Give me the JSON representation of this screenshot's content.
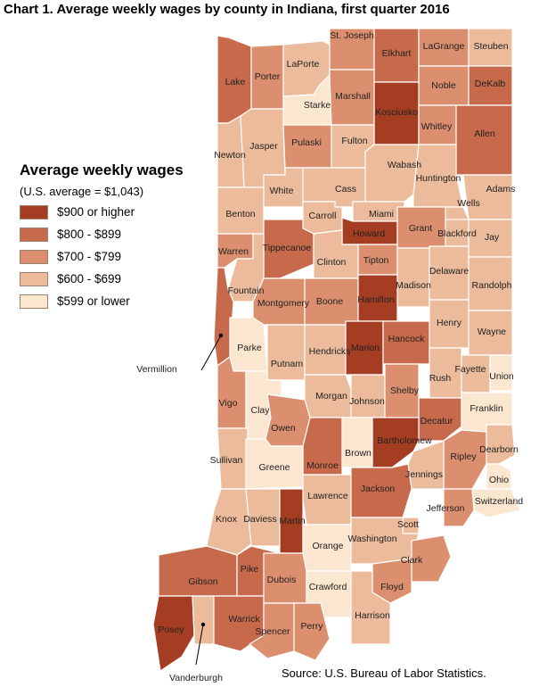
{
  "title": "Chart 1. Average weekly wages by county in Indiana, first quarter 2016",
  "legend": {
    "heading": "Average weekly wages",
    "note": "(U.S. average = $1,043)",
    "classes": [
      {
        "label": "$900 or higher",
        "color": "#a53d22"
      },
      {
        "label": "$800 - $899",
        "color": "#c7694b"
      },
      {
        "label": "$700 - $799",
        "color": "#db8f6e"
      },
      {
        "label": "$600 - $699",
        "color": "#ebbb9b"
      },
      {
        "label": "$599 or lower",
        "color": "#fbe6d0"
      }
    ]
  },
  "source": "Source: U.S. Bureau of Labor Statistics.",
  "counties": [
    {
      "name": "Lake",
      "class": 1
    },
    {
      "name": "Porter",
      "class": 2
    },
    {
      "name": "LaPorte",
      "class": 3
    },
    {
      "name": "St. Joseph",
      "class": 2
    },
    {
      "name": "Elkhart",
      "class": 1
    },
    {
      "name": "LaGrange",
      "class": 2
    },
    {
      "name": "Steuben",
      "class": 3
    },
    {
      "name": "Noble",
      "class": 2
    },
    {
      "name": "DeKalb",
      "class": 1
    },
    {
      "name": "Starke",
      "class": 4
    },
    {
      "name": "Marshall",
      "class": 2
    },
    {
      "name": "Kosciusko",
      "class": 0
    },
    {
      "name": "Whitley",
      "class": 2
    },
    {
      "name": "Allen",
      "class": 1
    },
    {
      "name": "Newton",
      "class": 3
    },
    {
      "name": "Jasper",
      "class": 3
    },
    {
      "name": "Pulaski",
      "class": 2
    },
    {
      "name": "Fulton",
      "class": 3
    },
    {
      "name": "Wabash",
      "class": 3
    },
    {
      "name": "Huntington",
      "class": 3
    },
    {
      "name": "Adams",
      "class": 3
    },
    {
      "name": "Wells",
      "class": 3
    },
    {
      "name": "White",
      "class": 3
    },
    {
      "name": "Cass",
      "class": 3
    },
    {
      "name": "Miami",
      "class": 3
    },
    {
      "name": "Benton",
      "class": 3
    },
    {
      "name": "Carroll",
      "class": 3
    },
    {
      "name": "Howard",
      "class": 0
    },
    {
      "name": "Grant",
      "class": 2
    },
    {
      "name": "Blackford",
      "class": 3
    },
    {
      "name": "Jay",
      "class": 3
    },
    {
      "name": "Warren",
      "class": 2
    },
    {
      "name": "Tippecanoe",
      "class": 1
    },
    {
      "name": "Clinton",
      "class": 3
    },
    {
      "name": "Tipton",
      "class": 2
    },
    {
      "name": "Madison",
      "class": 3
    },
    {
      "name": "Delaware",
      "class": 3
    },
    {
      "name": "Randolph",
      "class": 3
    },
    {
      "name": "Fountain",
      "class": 3
    },
    {
      "name": "Montgomery",
      "class": 2
    },
    {
      "name": "Boone",
      "class": 2
    },
    {
      "name": "Hamilton",
      "class": 0
    },
    {
      "name": "Henry",
      "class": 3
    },
    {
      "name": "Wayne",
      "class": 3
    },
    {
      "name": "Vermillion",
      "class": 1
    },
    {
      "name": "Parke",
      "class": 4
    },
    {
      "name": "Putnam",
      "class": 3
    },
    {
      "name": "Hendricks",
      "class": 3
    },
    {
      "name": "Marion",
      "class": 0
    },
    {
      "name": "Hancock",
      "class": 1
    },
    {
      "name": "Rush",
      "class": 3
    },
    {
      "name": "Fayette",
      "class": 3
    },
    {
      "name": "Union",
      "class": 4
    },
    {
      "name": "Vigo",
      "class": 2
    },
    {
      "name": "Clay",
      "class": 4
    },
    {
      "name": "Morgan",
      "class": 3
    },
    {
      "name": "Johnson",
      "class": 3
    },
    {
      "name": "Shelby",
      "class": 2
    },
    {
      "name": "Decatur",
      "class": 1
    },
    {
      "name": "Franklin",
      "class": 4
    },
    {
      "name": "Owen",
      "class": 2
    },
    {
      "name": "Monroe",
      "class": 1
    },
    {
      "name": "Brown",
      "class": 4
    },
    {
      "name": "Bartholomew",
      "class": 0
    },
    {
      "name": "Ripley",
      "class": 2
    },
    {
      "name": "Dearborn",
      "class": 3
    },
    {
      "name": "Sullivan",
      "class": 3
    },
    {
      "name": "Greene",
      "class": 4
    },
    {
      "name": "Jennings",
      "class": 3
    },
    {
      "name": "Ohio",
      "class": 4
    },
    {
      "name": "Lawrence",
      "class": 3
    },
    {
      "name": "Jackson",
      "class": 1
    },
    {
      "name": "Jefferson",
      "class": 2
    },
    {
      "name": "Switzerland",
      "class": 4
    },
    {
      "name": "Knox",
      "class": 3
    },
    {
      "name": "Daviess",
      "class": 3
    },
    {
      "name": "Martin",
      "class": 0
    },
    {
      "name": "Scott",
      "class": 3
    },
    {
      "name": "Orange",
      "class": 4
    },
    {
      "name": "Washington",
      "class": 3
    },
    {
      "name": "Clark",
      "class": 2
    },
    {
      "name": "Gibson",
      "class": 1
    },
    {
      "name": "Pike",
      "class": 1
    },
    {
      "name": "Dubois",
      "class": 2
    },
    {
      "name": "Crawford",
      "class": 4
    },
    {
      "name": "Floyd",
      "class": 2
    },
    {
      "name": "Harrison",
      "class": 3
    },
    {
      "name": "Posey",
      "class": 0
    },
    {
      "name": "Vanderburgh",
      "class": 3
    },
    {
      "name": "Warrick",
      "class": 1
    },
    {
      "name": "Spencer",
      "class": 2
    },
    {
      "name": "Perry",
      "class": 2
    }
  ]
}
